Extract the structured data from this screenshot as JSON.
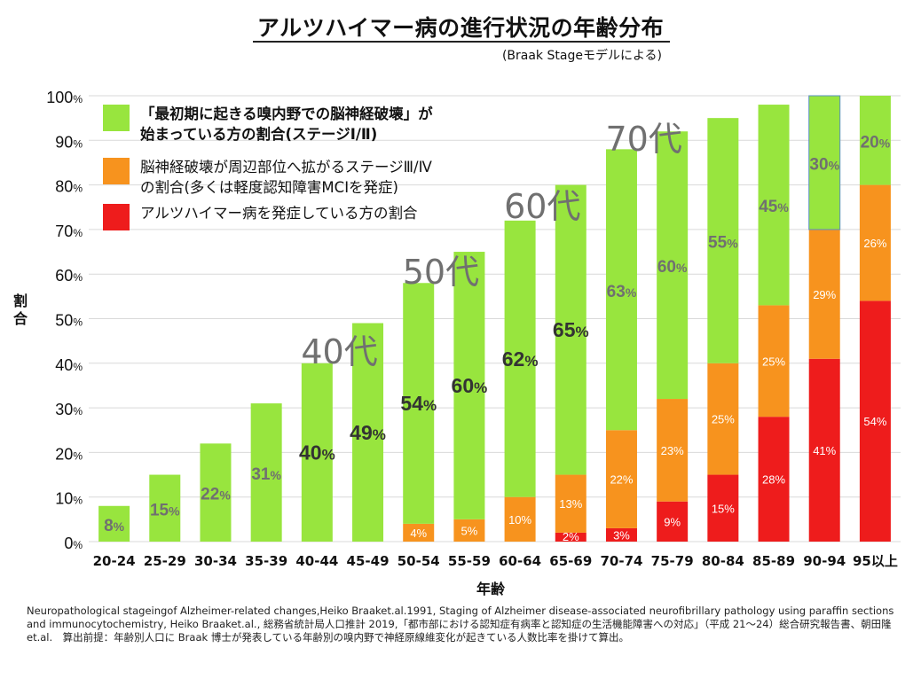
{
  "title": "アルツハイマー病の進行状況の年齢分布",
  "subtitle": "(Braak Stageモデルによる)",
  "footnote": "Neuropathological stageingof Alzheimer-related changes,Heiko Braaket.al.1991, Staging of Alzheimer disease-associated neurofibrillary pathology using paraffin sections and immunocytochemistry, Heiko Braaket.al., 総務省統計局人口推計 2019,「都市部における認知症有病率と認知症の生活機能障害への対応」（平成 21～24）総合研究報告書、朝田隆 et.al.　算出前提：年齢別人口に Braak 博士が発表している年齢別の嗅内野で神経原線維変化が起きている人数比率を掛けて算出。",
  "colors": {
    "green": "#98e53e",
    "orange": "#f7931e",
    "red": "#ee1c1c",
    "grid": "#d9d9d9",
    "decade": "#707070",
    "ylabel": "#333333"
  },
  "chart_data": {
    "type": "bar",
    "stacked": true,
    "ylabel": "割合",
    "xlabel": "年齢",
    "ylim": [
      0,
      100
    ],
    "yticks": [
      {
        "v": 0,
        "num": "0",
        "unit": "%"
      },
      {
        "v": 10,
        "num": "10",
        "unit": "%"
      },
      {
        "v": 20,
        "num": "20",
        "unit": "%"
      },
      {
        "v": 30,
        "num": "30",
        "unit": "%"
      },
      {
        "v": 40,
        "num": "40",
        "unit": "%"
      },
      {
        "v": 50,
        "num": "50",
        "unit": "%"
      },
      {
        "v": 60,
        "num": "60",
        "unit": "%"
      },
      {
        "v": 70,
        "num": "70",
        "unit": "%"
      },
      {
        "v": 80,
        "num": "80",
        "unit": "%"
      },
      {
        "v": 90,
        "num": "90",
        "unit": "%"
      },
      {
        "v": 100,
        "num": "100",
        "unit": "%"
      }
    ],
    "grid": true,
    "legend_position": "top-left",
    "categories": [
      "20-24",
      "25-29",
      "30-34",
      "35-39",
      "40-44",
      "45-49",
      "50-54",
      "55-59",
      "60-64",
      "65-69",
      "70-74",
      "75-79",
      "80-84",
      "85-89",
      "90-94",
      "95以上"
    ],
    "series": [
      {
        "name": "アルツハイマー病を発症している方の割合",
        "color": "red",
        "values": [
          0,
          0,
          0,
          0,
          0,
          0,
          0,
          0,
          0,
          2,
          3,
          9,
          15,
          28,
          41,
          54
        ],
        "labels": [
          "",
          "",
          "",
          "",
          "",
          "",
          "",
          "",
          "",
          "2%",
          "3%",
          "9%",
          "15%",
          "28%",
          "41%",
          "54%"
        ]
      },
      {
        "name": "脳神経破壊が周辺部位へ拡がるステージⅢ/Ⅳの割合(多くは軽度認知障害MCIを発症)",
        "color": "orange",
        "values": [
          0,
          0,
          0,
          0,
          0,
          0,
          4,
          5,
          10,
          13,
          22,
          23,
          25,
          25,
          29,
          26
        ],
        "labels": [
          "",
          "",
          "",
          "",
          "",
          "",
          "4%",
          "5%",
          "10%",
          "13%",
          "22%",
          "23%",
          "25%",
          "25%",
          "29%",
          "26%"
        ]
      },
      {
        "name": "「最初期に起きる嗅内野での脳神経破壊」が始まっている方の割合(ステージⅠ/Ⅱ)",
        "color": "green",
        "values": [
          8,
          15,
          22,
          31,
          40,
          49,
          54,
          60,
          62,
          65,
          63,
          60,
          55,
          45,
          30,
          20
        ],
        "labels": [
          "8%",
          "15%",
          "22%",
          "31%",
          "40%",
          "49%",
          "54%",
          "60%",
          "62%",
          "65%",
          "63%",
          "60%",
          "55%",
          "45%",
          "30%",
          "20%"
        ]
      }
    ],
    "legend": [
      {
        "color": "green",
        "lines": [
          "「最初期に起きる嗅内野での脳神経破壊」が",
          "始まっている方の割合(ステージⅠ/Ⅱ)"
        ]
      },
      {
        "color": "orange",
        "lines": [
          "脳神経破壊が周辺部位へ拡がるステージⅢ/Ⅳ",
          "の割合(多くは軽度認知障害MCIを発症)"
        ]
      },
      {
        "color": "red",
        "lines": [
          "アルツハイマー病を発症している方の割合"
        ]
      }
    ],
    "annotations": [
      {
        "text": "40代",
        "category": "40-44"
      },
      {
        "text": "50代",
        "category": "50-54"
      },
      {
        "text": "60代",
        "category": "60-64"
      },
      {
        "text": "70代",
        "category": "70-74"
      }
    ]
  }
}
